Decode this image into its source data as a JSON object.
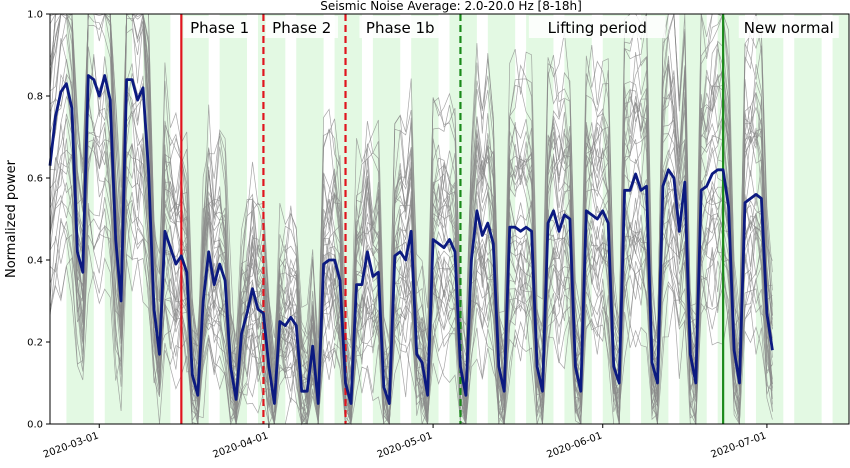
{
  "chart_data": {
    "type": "line",
    "title": "Seismic Noise Average:  2.0-20.0 Hz [8-18h]",
    "ylabel": "Normalized power",
    "xlabel": "",
    "ylim": [
      0.0,
      1.0
    ],
    "x_range": [
      "2020-02-21",
      "2020-07-16"
    ],
    "yticks": [
      "0.0",
      "0.2",
      "0.4",
      "0.6",
      "0.8",
      "1.0"
    ],
    "xticks": [
      {
        "date": "2020-03-01",
        "label": "2020-03-01"
      },
      {
        "date": "2020-04-01",
        "label": "2020-04-01"
      },
      {
        "date": "2020-05-01",
        "label": "2020-05-01"
      },
      {
        "date": "2020-06-01",
        "label": "2020-06-01"
      },
      {
        "date": "2020-07-01",
        "label": "2020-07-01"
      }
    ],
    "weekday_shading_color": "#e3f9e3",
    "average_color": "#0c1a80",
    "station_color": "#8a8a8a",
    "phase_lines": [
      {
        "date": "2020-03-16",
        "style": "solid",
        "color": "#e0141e"
      },
      {
        "date": "2020-03-31",
        "style": "dashed",
        "color": "#e0141e"
      },
      {
        "date": "2020-04-15",
        "style": "dashed",
        "color": "#e0141e"
      },
      {
        "date": "2020-05-06",
        "style": "dashed",
        "color": "#1a8a1a"
      },
      {
        "date": "2020-06-23",
        "style": "solid",
        "color": "#1a8a1a"
      }
    ],
    "phases": [
      {
        "label": "Phase 1",
        "date": "2020-03-23"
      },
      {
        "label": "Phase 2",
        "date": "2020-04-07"
      },
      {
        "label": "Phase 1b",
        "date": "2020-04-25"
      },
      {
        "label": "Lifting period",
        "date": "2020-05-31"
      },
      {
        "label": "New normal",
        "date": "2020-07-05"
      }
    ],
    "series": [
      {
        "role": "average",
        "start_date": "2020-02-21",
        "values": [
          0.63,
          0.75,
          0.81,
          0.83,
          0.77,
          0.42,
          0.37,
          0.85,
          0.84,
          0.8,
          0.85,
          0.79,
          0.45,
          0.3,
          0.84,
          0.84,
          0.79,
          0.82,
          0.62,
          0.28,
          0.17,
          0.47,
          0.43,
          0.39,
          0.41,
          0.37,
          0.12,
          0.07,
          0.3,
          0.42,
          0.34,
          0.39,
          0.35,
          0.14,
          0.06,
          0.22,
          0.27,
          0.33,
          0.28,
          0.27,
          0.14,
          0.05,
          0.25,
          0.24,
          0.26,
          0.24,
          0.08,
          0.08,
          0.19,
          0.05,
          0.39,
          0.4,
          0.4,
          0.35,
          0.1,
          0.05,
          0.34,
          0.34,
          0.42,
          0.36,
          0.37,
          0.09,
          0.05,
          0.41,
          0.42,
          0.4,
          0.47,
          0.17,
          0.15,
          0.07,
          0.45,
          0.44,
          0.43,
          0.45,
          0.42,
          0.14,
          0.07,
          0.4,
          0.52,
          0.46,
          0.49,
          0.44,
          0.14,
          0.08,
          0.48,
          0.48,
          0.47,
          0.48,
          0.47,
          0.14,
          0.08,
          0.49,
          0.52,
          0.47,
          0.51,
          0.5,
          0.14,
          0.08,
          0.52,
          0.51,
          0.5,
          0.52,
          0.49,
          0.14,
          0.1,
          0.57,
          0.57,
          0.61,
          0.57,
          0.58,
          0.15,
          0.1,
          0.58,
          0.62,
          0.6,
          0.47,
          0.59,
          0.17,
          0.1,
          0.57,
          0.58,
          0.61,
          0.62,
          0.62,
          0.53,
          0.18,
          0.1,
          0.54,
          0.55,
          0.56,
          0.55,
          0.27,
          0.18
        ]
      }
    ],
    "station_traces_count": 40
  }
}
